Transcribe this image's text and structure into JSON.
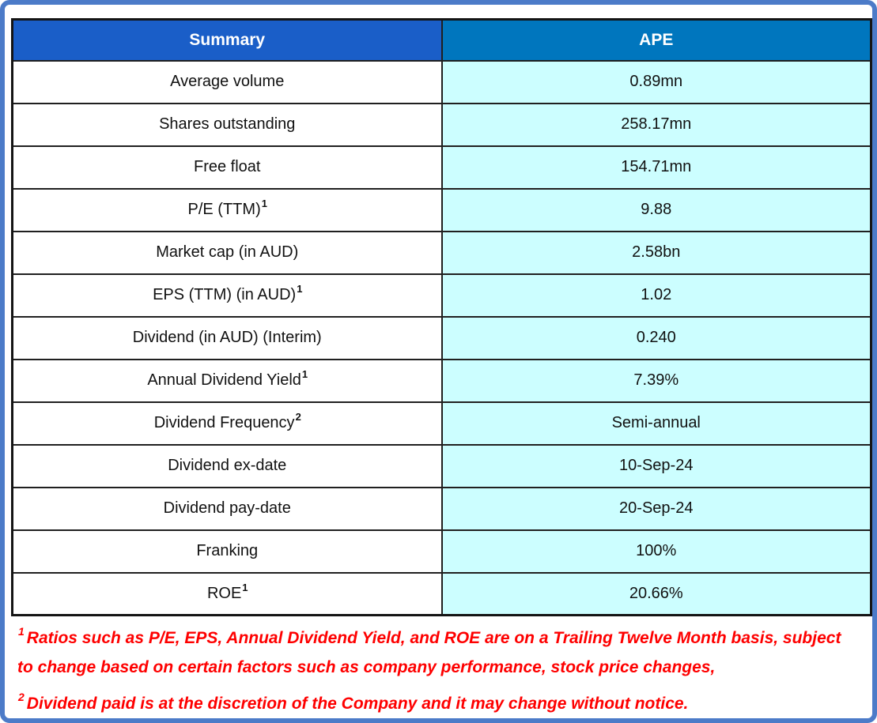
{
  "table": {
    "header": {
      "label": "Summary",
      "value": "APE"
    },
    "rows": [
      {
        "label": "Average volume",
        "sup": "",
        "value": "0.89mn"
      },
      {
        "label": "Shares outstanding",
        "sup": "",
        "value": "258.17mn"
      },
      {
        "label": "Free float",
        "sup": "",
        "value": "154.71mn"
      },
      {
        "label": "P/E (TTM)",
        "sup": "1",
        "value": "9.88"
      },
      {
        "label": "Market cap (in AUD)",
        "sup": "",
        "value": "2.58bn"
      },
      {
        "label": "EPS (TTM) (in AUD)",
        "sup": "1",
        "value": "1.02"
      },
      {
        "label": "Dividend (in AUD) (Interim)",
        "sup": "",
        "value": "0.240"
      },
      {
        "label": "Annual Dividend Yield",
        "sup": "1",
        "value": "7.39%"
      },
      {
        "label": "Dividend Frequency",
        "sup": "2",
        "value": "Semi-annual"
      },
      {
        "label": "Dividend ex-date",
        "sup": "",
        "value": "10-Sep-24"
      },
      {
        "label": "Dividend pay-date",
        "sup": "",
        "value": "20-Sep-24"
      },
      {
        "label": "Franking",
        "sup": "",
        "value": "100%"
      },
      {
        "label": "ROE",
        "sup": "1",
        "value": "20.66%"
      }
    ]
  },
  "footnotes": [
    {
      "sup": "1",
      "text": "Ratios such as P/E, EPS, Annual Dividend Yield, and ROE are on a Trailing Twelve Month basis, subject to change based on certain factors such as company performance, stock price changes,"
    },
    {
      "sup": "2",
      "text": "Dividend paid is at the discretion of the Company and it may change without notice."
    }
  ],
  "colors": {
    "frame_border": "#4C7BC8",
    "header_summary_bg": "#1A5EC8",
    "header_ape_bg": "#0076BE",
    "value_cell_bg": "#CCFEFF",
    "grid_line": "#202020",
    "footnote_text": "#FE0000"
  }
}
